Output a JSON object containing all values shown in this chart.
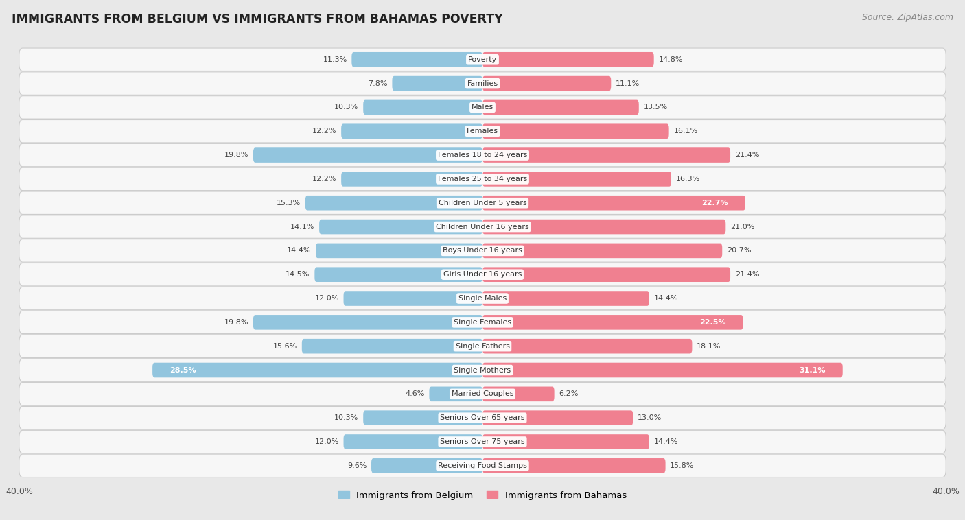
{
  "title": "IMMIGRANTS FROM BELGIUM VS IMMIGRANTS FROM BAHAMAS POVERTY",
  "source": "Source: ZipAtlas.com",
  "categories": [
    "Poverty",
    "Families",
    "Males",
    "Females",
    "Females 18 to 24 years",
    "Females 25 to 34 years",
    "Children Under 5 years",
    "Children Under 16 years",
    "Boys Under 16 years",
    "Girls Under 16 years",
    "Single Males",
    "Single Females",
    "Single Fathers",
    "Single Mothers",
    "Married Couples",
    "Seniors Over 65 years",
    "Seniors Over 75 years",
    "Receiving Food Stamps"
  ],
  "belgium_values": [
    11.3,
    7.8,
    10.3,
    12.2,
    19.8,
    12.2,
    15.3,
    14.1,
    14.4,
    14.5,
    12.0,
    19.8,
    15.6,
    28.5,
    4.6,
    10.3,
    12.0,
    9.6
  ],
  "bahamas_values": [
    14.8,
    11.1,
    13.5,
    16.1,
    21.4,
    16.3,
    22.7,
    21.0,
    20.7,
    21.4,
    14.4,
    22.5,
    18.1,
    31.1,
    6.2,
    13.0,
    14.4,
    15.8
  ],
  "belgium_color": "#92c5de",
  "bahamas_color": "#f08090",
  "background_color": "#e8e8e8",
  "row_bg_color": "#f7f7f7",
  "axis_limit": 40.0,
  "bar_height": 0.62,
  "legend_belgium": "Immigrants from Belgium",
  "legend_bahamas": "Immigrants from Bahamas",
  "label_threshold": 22.0
}
